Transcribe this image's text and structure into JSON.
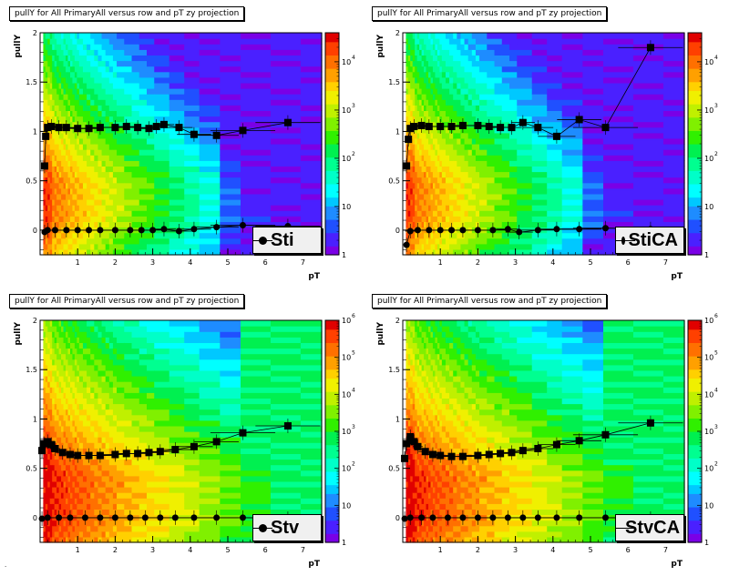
{
  "footer_text": ".",
  "chart_data": [
    {
      "type": "heatmap",
      "title": "pullY for All PrimaryAll versus row and pT zy projection",
      "xlabel": "pT",
      "ylabel": "pullY",
      "xlim": [
        0,
        7.5
      ],
      "ylim": [
        -0.25,
        2
      ],
      "x_ticks": [
        "1",
        "2",
        "3",
        "4",
        "5",
        "6",
        "7"
      ],
      "y_ticks": [
        "0",
        "0.5",
        "1",
        "1.5",
        "2"
      ],
      "legend": "Sti",
      "colorbar": {
        "log": true,
        "min": 1,
        "max": 40000,
        "labels": [
          "1",
          "10",
          "10",
          "10",
          "10",
          "10"
        ],
        "exponents": [
          "",
          "",
          "2",
          "3",
          "4",
          ""
        ]
      },
      "series": [
        {
          "values": [
            [
              0.12,
              0.65
            ],
            [
              0.15,
              0.95
            ],
            [
              0.2,
              1.04
            ],
            [
              0.3,
              1.05
            ],
            [
              0.5,
              1.04
            ],
            [
              0.7,
              1.04
            ],
            [
              1.0,
              1.03
            ],
            [
              1.3,
              1.03
            ],
            [
              1.6,
              1.04
            ],
            [
              2.0,
              1.04
            ],
            [
              2.3,
              1.05
            ],
            [
              2.6,
              1.04
            ],
            [
              2.9,
              1.03
            ],
            [
              3.1,
              1.05
            ],
            [
              3.3,
              1.07
            ],
            [
              3.7,
              1.04
            ],
            [
              4.1,
              0.97
            ],
            [
              4.7,
              0.96
            ],
            [
              5.4,
              1.01
            ],
            [
              6.6,
              1.09
            ]
          ]
        },
        {
          "values": [
            [
              0.12,
              -0.02
            ],
            [
              0.2,
              0.0
            ],
            [
              0.4,
              0.0
            ],
            [
              0.7,
              0.0
            ],
            [
              1.0,
              0.0
            ],
            [
              1.3,
              0.0
            ],
            [
              1.6,
              0.0
            ],
            [
              2.0,
              0.0
            ],
            [
              2.4,
              0.0
            ],
            [
              2.7,
              0.0
            ],
            [
              3.0,
              0.0
            ],
            [
              3.3,
              0.01
            ],
            [
              3.7,
              -0.01
            ],
            [
              4.1,
              0.01
            ],
            [
              4.7,
              0.03
            ],
            [
              5.4,
              0.05
            ],
            [
              6.6,
              0.04
            ]
          ]
        }
      ]
    },
    {
      "type": "heatmap",
      "title": "pullY for All PrimaryAll versus row and pT zy projection",
      "xlabel": "pT",
      "ylabel": "pullY",
      "xlim": [
        0,
        7.5
      ],
      "ylim": [
        -0.25,
        2
      ],
      "x_ticks": [
        "1",
        "2",
        "3",
        "4",
        "5",
        "6",
        "7"
      ],
      "y_ticks": [
        "0",
        "0.5",
        "1",
        "1.5",
        "2"
      ],
      "legend": "StiCA",
      "colorbar": {
        "log": true,
        "min": 1,
        "max": 40000,
        "labels": [
          "1",
          "10",
          "10",
          "10",
          "10",
          "10"
        ],
        "exponents": [
          "",
          "",
          "2",
          "3",
          "4",
          ""
        ]
      },
      "series": [
        {
          "values": [
            [
              0.1,
              0.65
            ],
            [
              0.15,
              0.92
            ],
            [
              0.2,
              1.03
            ],
            [
              0.3,
              1.05
            ],
            [
              0.5,
              1.06
            ],
            [
              0.7,
              1.05
            ],
            [
              1.0,
              1.05
            ],
            [
              1.3,
              1.05
            ],
            [
              1.6,
              1.06
            ],
            [
              2.0,
              1.06
            ],
            [
              2.3,
              1.05
            ],
            [
              2.6,
              1.04
            ],
            [
              2.9,
              1.04
            ],
            [
              3.2,
              1.09
            ],
            [
              3.6,
              1.04
            ],
            [
              4.1,
              0.95
            ],
            [
              4.7,
              1.12
            ],
            [
              5.4,
              1.04
            ],
            [
              6.6,
              1.85
            ]
          ]
        },
        {
          "values": [
            [
              0.1,
              -0.15
            ],
            [
              0.2,
              -0.01
            ],
            [
              0.4,
              0.0
            ],
            [
              0.7,
              0.0
            ],
            [
              1.0,
              0.0
            ],
            [
              1.3,
              0.0
            ],
            [
              1.6,
              0.0
            ],
            [
              2.0,
              0.0
            ],
            [
              2.4,
              0.0
            ],
            [
              2.8,
              0.01
            ],
            [
              3.1,
              -0.02
            ],
            [
              3.6,
              0.0
            ],
            [
              4.1,
              0.01
            ],
            [
              4.7,
              0.01
            ],
            [
              5.4,
              0.02
            ],
            [
              6.6,
              0.01
            ]
          ]
        }
      ]
    },
    {
      "type": "heatmap",
      "title": "pullY for All PrimaryAll versus row and pT zy projection",
      "xlabel": "pT",
      "ylabel": "pullY",
      "xlim": [
        0,
        7.5
      ],
      "ylim": [
        -0.25,
        2
      ],
      "x_ticks": [
        "1",
        "2",
        "3",
        "4",
        "5",
        "6",
        "7"
      ],
      "y_ticks": [
        "0",
        "0.5",
        "1",
        "1.5",
        "2"
      ],
      "legend": "Stv",
      "colorbar": {
        "log": true,
        "min": 1,
        "max": 1000000,
        "labels": [
          "1",
          "10",
          "10",
          "10",
          "10",
          "10",
          "10"
        ],
        "exponents": [
          "",
          "",
          "2",
          "3",
          "4",
          "5",
          "6"
        ]
      },
      "series": [
        {
          "values": [
            [
              0.05,
              0.68
            ],
            [
              0.1,
              0.75
            ],
            [
              0.2,
              0.77
            ],
            [
              0.3,
              0.74
            ],
            [
              0.4,
              0.7
            ],
            [
              0.6,
              0.66
            ],
            [
              0.8,
              0.64
            ],
            [
              1.0,
              0.63
            ],
            [
              1.3,
              0.63
            ],
            [
              1.6,
              0.63
            ],
            [
              2.0,
              0.64
            ],
            [
              2.3,
              0.65
            ],
            [
              2.6,
              0.65
            ],
            [
              2.9,
              0.66
            ],
            [
              3.2,
              0.67
            ],
            [
              3.6,
              0.69
            ],
            [
              4.1,
              0.72
            ],
            [
              4.7,
              0.77
            ],
            [
              5.4,
              0.86
            ],
            [
              6.6,
              0.93
            ]
          ]
        },
        {
          "values": [
            [
              0.05,
              -0.01
            ],
            [
              0.2,
              0.0
            ],
            [
              0.5,
              0.0
            ],
            [
              0.8,
              0.0
            ],
            [
              1.2,
              0.0
            ],
            [
              1.6,
              0.0
            ],
            [
              2.0,
              0.0
            ],
            [
              2.4,
              0.0
            ],
            [
              2.8,
              0.0
            ],
            [
              3.2,
              0.0
            ],
            [
              3.6,
              0.0
            ],
            [
              4.1,
              0.0
            ],
            [
              4.7,
              0.0
            ],
            [
              5.4,
              0.0
            ],
            [
              6.6,
              -0.01
            ]
          ]
        }
      ]
    },
    {
      "type": "heatmap",
      "title": "pullY for All PrimaryAll versus row and pT zy projection",
      "xlabel": "pT",
      "ylabel": "pullY",
      "xlim": [
        0,
        7.5
      ],
      "ylim": [
        -0.25,
        2
      ],
      "x_ticks": [
        "1",
        "2",
        "3",
        "4",
        "5",
        "6",
        "7"
      ],
      "y_ticks": [
        "0",
        "0.5",
        "1",
        "1.5",
        "2"
      ],
      "legend": "StvCA",
      "colorbar": {
        "log": true,
        "min": 1,
        "max": 1000000,
        "labels": [
          "1",
          "10",
          "10",
          "10",
          "10",
          "10",
          "10"
        ],
        "exponents": [
          "",
          "",
          "2",
          "3",
          "4",
          "5",
          "6"
        ]
      },
      "series": [
        {
          "values": [
            [
              0.05,
              0.6
            ],
            [
              0.1,
              0.75
            ],
            [
              0.2,
              0.82
            ],
            [
              0.3,
              0.77
            ],
            [
              0.4,
              0.72
            ],
            [
              0.6,
              0.67
            ],
            [
              0.8,
              0.64
            ],
            [
              1.0,
              0.63
            ],
            [
              1.3,
              0.62
            ],
            [
              1.6,
              0.62
            ],
            [
              2.0,
              0.63
            ],
            [
              2.3,
              0.64
            ],
            [
              2.6,
              0.65
            ],
            [
              2.9,
              0.66
            ],
            [
              3.2,
              0.68
            ],
            [
              3.6,
              0.7
            ],
            [
              4.1,
              0.74
            ],
            [
              4.7,
              0.78
            ],
            [
              5.4,
              0.84
            ],
            [
              6.6,
              0.96
            ]
          ]
        },
        {
          "values": [
            [
              0.05,
              -0.01
            ],
            [
              0.2,
              0.0
            ],
            [
              0.5,
              0.0
            ],
            [
              0.8,
              0.0
            ],
            [
              1.2,
              0.0
            ],
            [
              1.6,
              0.0
            ],
            [
              2.0,
              0.0
            ],
            [
              2.4,
              0.0
            ],
            [
              2.8,
              0.0
            ],
            [
              3.2,
              0.0
            ],
            [
              3.6,
              0.0
            ],
            [
              4.1,
              0.0
            ],
            [
              4.7,
              0.0
            ],
            [
              5.4,
              0.0
            ],
            [
              6.6,
              -0.01
            ]
          ]
        }
      ]
    }
  ]
}
